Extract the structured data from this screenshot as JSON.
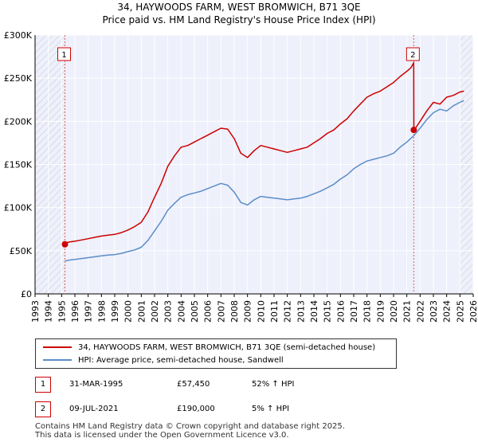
{
  "title_line1": "34, HAYWOODS FARM, WEST BROMWICH, B71 3QE",
  "title_line2": "Price paid vs. HM Land Registry's House Price Index (HPI)",
  "chart_data": {
    "type": "line",
    "title": "Price paid vs. HM Land Registry's House Price Index (HPI)",
    "xlim": [
      1993,
      2026
    ],
    "ylim": [
      0,
      300000
    ],
    "x_ticks": [
      "1993",
      "1994",
      "1995",
      "1996",
      "1997",
      "1998",
      "1999",
      "2000",
      "2001",
      "2002",
      "2003",
      "2004",
      "2005",
      "2006",
      "2007",
      "2008",
      "2009",
      "2010",
      "2011",
      "2012",
      "2013",
      "2014",
      "2015",
      "2016",
      "2017",
      "2018",
      "2019",
      "2020",
      "2021",
      "2022",
      "2023",
      "2024",
      "2025",
      "2026"
    ],
    "y_ticks": [
      {
        "value": 0,
        "label": "£0"
      },
      {
        "value": 50000,
        "label": "£50K"
      },
      {
        "value": 100000,
        "label": "£100K"
      },
      {
        "value": 150000,
        "label": "£150K"
      },
      {
        "value": 200000,
        "label": "£200K"
      },
      {
        "value": 250000,
        "label": "£250K"
      },
      {
        "value": 300000,
        "label": "£300K"
      }
    ],
    "shaded_before": 1995.25,
    "shaded_after": 2025.0,
    "series": [
      {
        "name": "34, HAYWOODS FARM, WEST BROMWICH, B71 3QE (semi-detached house)",
        "color": "#cc0000",
        "x": [
          1995.25,
          1995.5,
          1996,
          1996.5,
          1997,
          1997.5,
          1998,
          1998.5,
          1999,
          1999.5,
          2000,
          2000.5,
          2001,
          2001.5,
          2002,
          2002.5,
          2003,
          2003.5,
          2004,
          2004.5,
          2005,
          2005.5,
          2006,
          2006.5,
          2007,
          2007.5,
          2008,
          2008.5,
          2009,
          2009.5,
          2010,
          2010.5,
          2011,
          2011.5,
          2012,
          2012.5,
          2013,
          2013.5,
          2014,
          2014.5,
          2015,
          2015.5,
          2016,
          2016.5,
          2017,
          2017.5,
          2018,
          2018.5,
          2019,
          2019.5,
          2020,
          2020.5,
          2021,
          2021.3,
          2021.52,
          2021.53,
          2021.7,
          2022,
          2022.5,
          2023,
          2023.5,
          2024,
          2024.5,
          2025,
          2025.3
        ],
        "values": [
          57450,
          60000,
          61000,
          62500,
          64000,
          65500,
          67000,
          68000,
          69000,
          71000,
          74000,
          78000,
          83000,
          95000,
          112000,
          128000,
          148000,
          160000,
          170000,
          172000,
          176000,
          180000,
          184000,
          188000,
          192000,
          191000,
          180000,
          163000,
          158000,
          166000,
          172000,
          170000,
          168000,
          166000,
          164000,
          166000,
          168000,
          170000,
          175000,
          180000,
          186000,
          190000,
          197000,
          203000,
          212000,
          220000,
          228000,
          232000,
          235000,
          240000,
          245000,
          252000,
          258000,
          262000,
          268000,
          190000,
          193000,
          200000,
          212000,
          222000,
          220000,
          228000,
          230000,
          234000,
          235000
        ]
      },
      {
        "name": "HPI: Average price, semi-detached house, Sandwell",
        "color": "#5b8dc8",
        "x": [
          1995.25,
          1995.5,
          1996,
          1996.5,
          1997,
          1997.5,
          1998,
          1998.5,
          1999,
          1999.5,
          2000,
          2000.5,
          2001,
          2001.5,
          2002,
          2002.5,
          2003,
          2003.5,
          2004,
          2004.5,
          2005,
          2005.5,
          2006,
          2006.5,
          2007,
          2007.5,
          2008,
          2008.5,
          2009,
          2009.5,
          2010,
          2010.5,
          2011,
          2011.5,
          2012,
          2012.5,
          2013,
          2013.5,
          2014,
          2014.5,
          2015,
          2015.5,
          2016,
          2016.5,
          2017,
          2017.5,
          2018,
          2018.5,
          2019,
          2019.5,
          2020,
          2020.5,
          2021,
          2021.5,
          2022,
          2022.5,
          2023,
          2023.5,
          2024,
          2024.5,
          2025,
          2025.3
        ],
        "values": [
          38000,
          39000,
          40000,
          41000,
          42000,
          43000,
          44000,
          45000,
          45500,
          47000,
          49000,
          51000,
          54000,
          62000,
          73000,
          84000,
          97000,
          105000,
          112000,
          115000,
          117000,
          119000,
          122000,
          125000,
          128000,
          126000,
          118000,
          106000,
          103000,
          109000,
          113000,
          112000,
          111000,
          110000,
          109000,
          110000,
          111000,
          113000,
          116000,
          119000,
          123000,
          127000,
          133000,
          138000,
          145000,
          150000,
          154000,
          156000,
          158000,
          160000,
          163000,
          170000,
          176000,
          183000,
          192000,
          202000,
          210000,
          214000,
          212000,
          218000,
          222000,
          224000
        ]
      }
    ],
    "markers": [
      {
        "label": "1",
        "x": 1995.25,
        "y": 57450
      },
      {
        "label": "2",
        "x": 2021.52,
        "y": 190000
      }
    ]
  },
  "legend": {
    "items": [
      {
        "label": "34, HAYWOODS FARM, WEST BROMWICH, B71 3QE (semi-detached house)",
        "color": "#cc0000"
      },
      {
        "label": "HPI: Average price, semi-detached house, Sandwell",
        "color": "#5b8dc8"
      }
    ]
  },
  "transactions": [
    {
      "num": "1",
      "date": "31-MAR-1995",
      "price": "£57,450",
      "hpi": "52% ↑ HPI"
    },
    {
      "num": "2",
      "date": "09-JUL-2021",
      "price": "£190,000",
      "hpi": "5% ↑ HPI"
    }
  ],
  "footer_line1": "Contains HM Land Registry data © Crown copyright and database right 2025.",
  "footer_line2": "This data is licensed under the Open Government Licence v3.0."
}
